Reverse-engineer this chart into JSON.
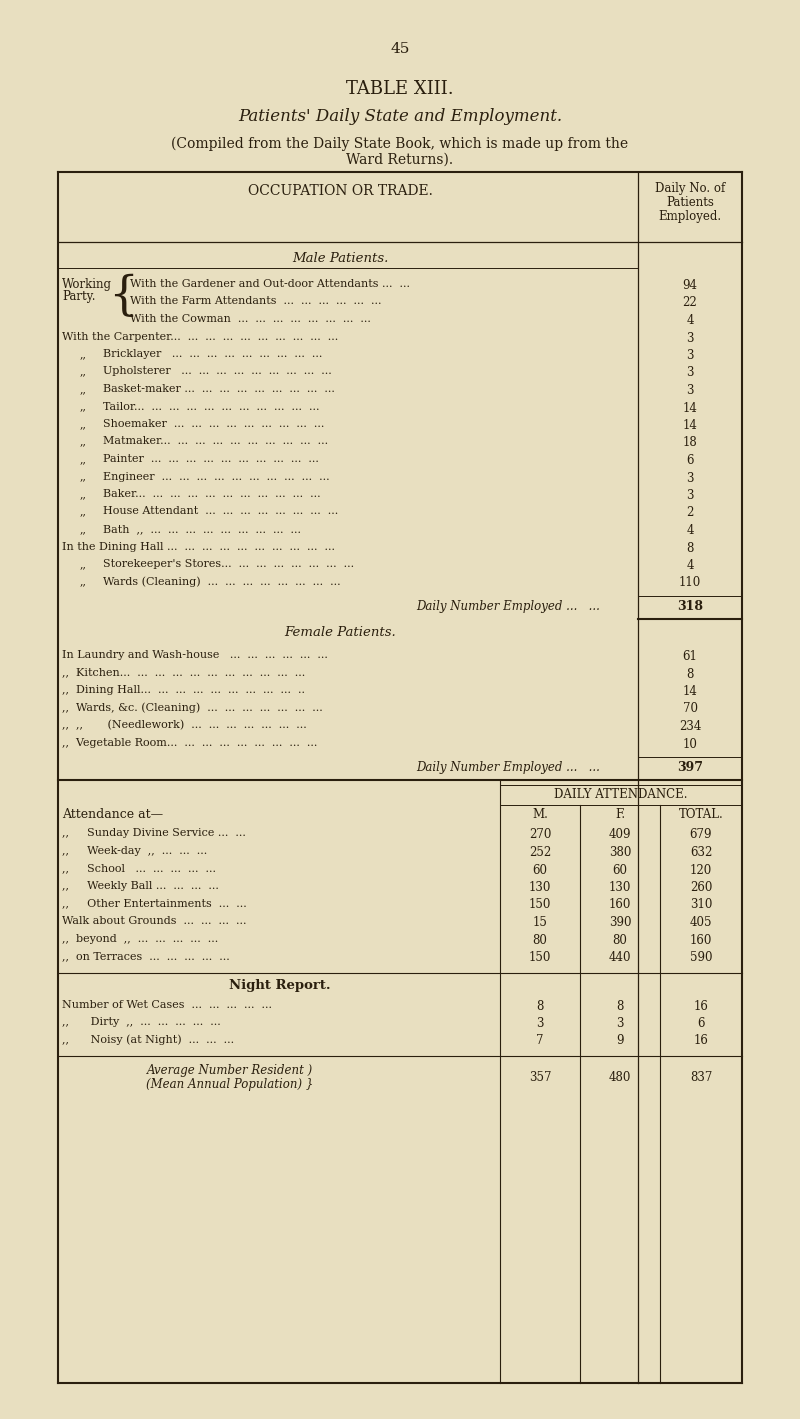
{
  "page_number": "45",
  "table_title": "TABLE XIII.",
  "subtitle_italic": "Patients' Daily State and Employment.",
  "subtitle2a": "(Compiled from the Daily State Book, which is made up from the",
  "subtitle2b": "Ward Returns).",
  "bg_color": "#e8dfc0",
  "text_color": "#2a1f0e",
  "male_section_title": "Male Patients.",
  "female_section_title": "Female Patients.",
  "male_total_label": "Daily Number Employed ...   ...",
  "male_total": "318",
  "female_total_label": "Daily Number Employed ...   ...",
  "female_total": "397",
  "attendance_header": "DAILY ATTENDANCE.",
  "attendance_col_m": "M.",
  "attendance_col_f": "F.",
  "attendance_col_total": "TOTAL.",
  "attendance_label": "Attendance at—",
  "attendance_rows": [
    {
      "label": ",,   Sunday Divine Service ...  ...",
      "m": "270",
      "f": "409",
      "total": "679"
    },
    {
      "label": ",,   Week-day  ,,  ...  ...  ...",
      "m": "252",
      "f": "380",
      "total": "632"
    },
    {
      "label": ",,   School   ...  ...  ...  ...  ...",
      "m": "60",
      "f": "60",
      "total": "120"
    },
    {
      "label": ",,   Weekly Ball ...  ...  ...  ...",
      "m": "130",
      "f": "130",
      "total": "260"
    },
    {
      "label": ",,   Other Entertainments  ...  ...",
      "m": "150",
      "f": "160",
      "total": "310"
    },
    {
      "label": "Walk about Grounds  ...  ...  ...  ...",
      "m": "15",
      "f": "390",
      "total": "405"
    },
    {
      "label": ",,  beyond  ,,  ...  ...  ...  ...  ...",
      "m": "80",
      "f": "80",
      "total": "160"
    },
    {
      "label": ",,  on Terraces  ...  ...  ...  ...  ...",
      "m": "150",
      "f": "440",
      "total": "590"
    }
  ],
  "night_report_title": "Night Report.",
  "night_rows": [
    {
      "label": "Number of Wet Cases  ...  ...  ...  ...  ...",
      "m": "8",
      "f": "8",
      "total": "16"
    },
    {
      "label": ",,    Dirty  ,,  ...  ...  ...  ...  ...",
      "m": "3",
      "f": "3",
      "total": "6"
    },
    {
      "label": ",,    Noisy (at Night)  ...  ...  ...",
      "m": "7",
      "f": "9",
      "total": "16"
    }
  ],
  "avg_label1": "Average Number Resident )",
  "avg_label2": "(Mean Annual Population) }",
  "avg_m": "357",
  "avg_f": "480",
  "avg_total": "837"
}
